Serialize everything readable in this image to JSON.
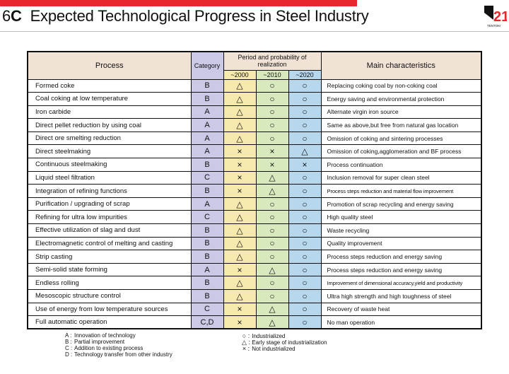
{
  "header": {
    "slide_number": "6",
    "slide_letter": "C",
    "title": "Expected Technological Progress in Steel Industry",
    "logo_text": "TENTOKI",
    "logo_numeral": "21"
  },
  "colors": {
    "top_bar": "#e8262d",
    "header_bg": "#f1e2d6",
    "category_bg": "#ccc9e6",
    "col_2000_bg": "#f6e9ad",
    "col_2010_bg": "#d8e9be",
    "col_2020_bg": "#b7d7ec"
  },
  "table": {
    "headers": {
      "process": "Process",
      "category": "Category",
      "period": "Period and probability of realization",
      "main": "Main characteristics"
    },
    "periods": [
      "~2000",
      "~2010",
      "~2020"
    ],
    "rows": [
      {
        "process": "Formed coke",
        "category": "B",
        "p2000": "△",
        "p2010": "○",
        "p2020": "○",
        "main": "Replacing coking coal by non-coking coal"
      },
      {
        "process": "Coal coking at low temperature",
        "category": "B",
        "p2000": "△",
        "p2010": "○",
        "p2020": "○",
        "main": "Energy saving and environmental protection"
      },
      {
        "process": "Iron carbide",
        "category": "A",
        "p2000": "△",
        "p2010": "○",
        "p2020": "○",
        "main": "Alternate virgin iron source"
      },
      {
        "process": "Direct pellet reduction by using coal",
        "category": "A",
        "p2000": "△",
        "p2010": "○",
        "p2020": "○",
        "main": "Same as above,but free from natural gas location"
      },
      {
        "process": "Direct ore smelting reduction",
        "category": "A",
        "p2000": "△",
        "p2010": "○",
        "p2020": "○",
        "main": "Omission of coking and sintering processes"
      },
      {
        "process": "Direct steelmaking",
        "category": "A",
        "p2000": "×",
        "p2010": "×",
        "p2020": "△",
        "main": "Omission of coking,agglomeration and BF process"
      },
      {
        "process": "Continuous steelmaking",
        "category": "B",
        "p2000": "×",
        "p2010": "×",
        "p2020": "×",
        "main": "Process continuation"
      },
      {
        "process": "Liquid steel filtration",
        "category": "C",
        "p2000": "×",
        "p2010": "△",
        "p2020": "○",
        "main": "Inclusion removal for super clean steel"
      },
      {
        "process": "Integration of refining functions",
        "category": "B",
        "p2000": "×",
        "p2010": "△",
        "p2020": "○",
        "main": "Process steps reduction and material flow improvement"
      },
      {
        "process": "Purification / upgrading of scrap",
        "category": "A",
        "p2000": "△",
        "p2010": "○",
        "p2020": "○",
        "main": "Promotion of scrap recycling and energy saving"
      },
      {
        "process": "Refining for ultra low impurities",
        "category": "C",
        "p2000": "△",
        "p2010": "○",
        "p2020": "○",
        "main": "High quality steel"
      },
      {
        "process": "Effective utilization of slag and dust",
        "category": "B",
        "p2000": "△",
        "p2010": "○",
        "p2020": "○",
        "main": "Waste recycling"
      },
      {
        "process": "Electromagnetic control of melting and casting",
        "category": "B",
        "p2000": "△",
        "p2010": "○",
        "p2020": "○",
        "main": "Quality improvement"
      },
      {
        "process": "Strip casting",
        "category": "B",
        "p2000": "△",
        "p2010": "○",
        "p2020": "○",
        "main": "Process steps reduction and energy saving"
      },
      {
        "process": "Semi-solid state forming",
        "category": "A",
        "p2000": "×",
        "p2010": "△",
        "p2020": "○",
        "main": "Process steps reduction and energy saving"
      },
      {
        "process": "Endless rolling",
        "category": "B",
        "p2000": "△",
        "p2010": "○",
        "p2020": "○",
        "main": "Improvement of dimensional accuracy,yield and productivity"
      },
      {
        "process": "Mesoscopic structure control",
        "category": "B",
        "p2000": "△",
        "p2010": "○",
        "p2020": "○",
        "main": "Ultra high strength and high toughness of steel"
      },
      {
        "process": "Use of energy from low temperature sources",
        "category": "C",
        "p2000": "×",
        "p2010": "△",
        "p2020": "○",
        "main": "Recovery of waste heat"
      },
      {
        "process": "Full automatic operation",
        "category": "C,D",
        "p2000": "×",
        "p2010": "△",
        "p2020": "○",
        "main": "No man operation"
      }
    ]
  },
  "legend_categories": [
    {
      "key": "A :",
      "text": "Innovation of technology"
    },
    {
      "key": "B :",
      "text": "Partial improvement"
    },
    {
      "key": "C :",
      "text": "Addition to existing process"
    },
    {
      "key": "D :",
      "text": "Technology transfer from other industry"
    }
  ],
  "legend_symbols": [
    {
      "symbol": "○ :",
      "text": "Industrialized"
    },
    {
      "symbol": "△ :",
      "text": "Early stage of industrialization"
    },
    {
      "symbol": "× :",
      "text": "Not industrialized"
    }
  ]
}
